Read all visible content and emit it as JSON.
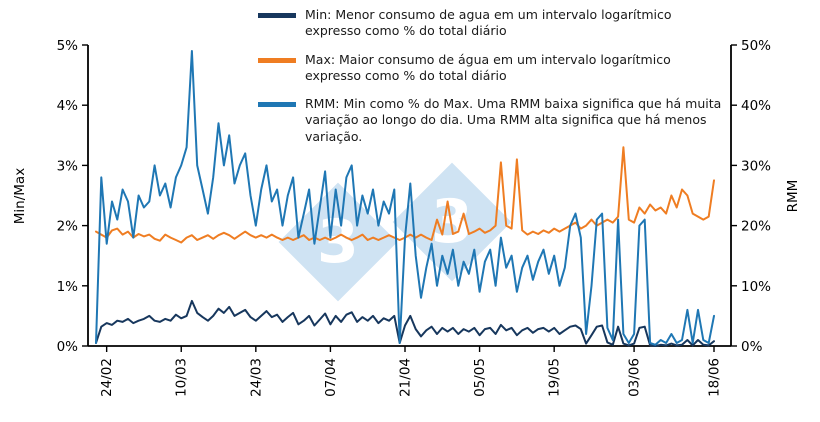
{
  "page": {
    "background": "#ffffff"
  },
  "watermark": {
    "digits": [
      "3",
      "3"
    ],
    "color": "#cfe3f3"
  },
  "legend": {
    "items": [
      {
        "name": "Min",
        "color": "#17375d",
        "text": "Min: Menor consumo de agua em um intervalo logarítmico expresso como % do total diário"
      },
      {
        "name": "Max",
        "color": "#ef7d22",
        "text": "Max: Maior consumo de água em um intervalo logarítmico expresso como % do total diário"
      },
      {
        "name": "RMM",
        "color": "#1f77b4",
        "text": "RMM: Min como % do Max. Uma RMM baixa significa que há muita variação ao longo do dia. Uma RMM alta significa que há menos variação."
      }
    ]
  },
  "chart_data": {
    "type": "line",
    "title": "",
    "left_axis": {
      "label": "Min/Max",
      "range": [
        0,
        5
      ],
      "ticks": [
        "0%",
        "1%",
        "2%",
        "3%",
        "4%",
        "5%"
      ]
    },
    "right_axis": {
      "label": "RMM",
      "range": [
        0,
        50
      ],
      "ticks": [
        "0%",
        "10%",
        "20%",
        "30%",
        "40%",
        "50%"
      ]
    },
    "n_points": 117,
    "x_ticks": [
      {
        "label": "24/02",
        "index": 2
      },
      {
        "label": "10/03",
        "index": 16
      },
      {
        "label": "24/03",
        "index": 30
      },
      {
        "label": "07/04",
        "index": 44
      },
      {
        "label": "21/04",
        "index": 58
      },
      {
        "label": "05/05",
        "index": 72
      },
      {
        "label": "19/05",
        "index": 86
      },
      {
        "label": "03/06",
        "index": 101
      },
      {
        "label": "18/06",
        "index": 116
      }
    ],
    "series": [
      {
        "name": "Min",
        "axis": "left",
        "color": "#17375d",
        "values": [
          0.05,
          0.32,
          0.38,
          0.35,
          0.42,
          0.4,
          0.45,
          0.38,
          0.42,
          0.45,
          0.5,
          0.42,
          0.4,
          0.45,
          0.42,
          0.52,
          0.46,
          0.5,
          0.75,
          0.55,
          0.48,
          0.42,
          0.5,
          0.62,
          0.55,
          0.65,
          0.5,
          0.55,
          0.6,
          0.48,
          0.42,
          0.5,
          0.58,
          0.48,
          0.52,
          0.4,
          0.48,
          0.55,
          0.36,
          0.42,
          0.5,
          0.34,
          0.44,
          0.54,
          0.36,
          0.5,
          0.4,
          0.52,
          0.56,
          0.4,
          0.48,
          0.42,
          0.5,
          0.38,
          0.46,
          0.42,
          0.5,
          0.05,
          0.34,
          0.5,
          0.28,
          0.16,
          0.26,
          0.32,
          0.2,
          0.3,
          0.24,
          0.3,
          0.2,
          0.28,
          0.24,
          0.3,
          0.18,
          0.28,
          0.3,
          0.2,
          0.35,
          0.26,
          0.3,
          0.18,
          0.26,
          0.3,
          0.22,
          0.28,
          0.3,
          0.24,
          0.3,
          0.2,
          0.26,
          0.32,
          0.34,
          0.28,
          0.04,
          0.18,
          0.32,
          0.34,
          0.06,
          0.02,
          0.32,
          0.04,
          0.01,
          0.04,
          0.3,
          0.32,
          0.01,
          0.0,
          0.02,
          0.01,
          0.04,
          0.01,
          0.02,
          0.1,
          0.01,
          0.1,
          0.02,
          0.01,
          0.08
        ]
      },
      {
        "name": "Max",
        "axis": "left",
        "color": "#ef7d22",
        "values": [
          1.9,
          1.85,
          1.8,
          1.92,
          1.95,
          1.85,
          1.9,
          1.8,
          1.86,
          1.82,
          1.85,
          1.78,
          1.75,
          1.85,
          1.8,
          1.76,
          1.72,
          1.8,
          1.84,
          1.76,
          1.8,
          1.84,
          1.78,
          1.84,
          1.88,
          1.84,
          1.78,
          1.84,
          1.9,
          1.84,
          1.8,
          1.84,
          1.8,
          1.85,
          1.8,
          1.76,
          1.8,
          1.76,
          1.8,
          1.84,
          1.76,
          1.8,
          1.76,
          1.8,
          1.76,
          1.8,
          1.85,
          1.8,
          1.76,
          1.8,
          1.85,
          1.76,
          1.8,
          1.76,
          1.8,
          1.84,
          1.8,
          1.76,
          1.8,
          1.85,
          1.8,
          1.85,
          1.8,
          1.76,
          2.1,
          1.85,
          2.4,
          1.86,
          1.9,
          2.2,
          1.86,
          1.9,
          1.95,
          1.88,
          1.92,
          2.0,
          3.05,
          2.0,
          1.95,
          3.1,
          1.92,
          1.85,
          1.9,
          1.86,
          1.92,
          1.88,
          1.95,
          1.9,
          1.95,
          2.0,
          2.05,
          1.95,
          2.0,
          2.1,
          2.0,
          2.05,
          2.1,
          2.05,
          2.15,
          3.3,
          2.1,
          2.05,
          2.3,
          2.2,
          2.35,
          2.25,
          2.3,
          2.2,
          2.5,
          2.3,
          2.6,
          2.5,
          2.2,
          2.15,
          2.1,
          2.15,
          2.75
        ]
      },
      {
        "name": "RMM",
        "axis": "right",
        "color": "#1f77b4",
        "values": [
          0.5,
          28,
          17,
          24,
          21,
          26,
          24,
          18,
          25,
          23,
          24,
          30,
          25,
          27,
          23,
          28,
          30,
          33,
          49,
          30,
          26,
          22,
          28,
          37,
          30,
          35,
          27,
          30,
          32,
          25,
          20,
          26,
          30,
          24,
          26,
          20,
          25,
          28,
          18,
          22,
          26,
          17,
          23,
          29,
          18,
          26,
          20,
          28,
          30,
          20,
          25,
          22,
          26,
          20,
          24,
          22,
          26,
          0.5,
          18,
          27,
          15,
          8,
          13,
          17,
          10,
          15,
          12,
          16,
          10,
          14,
          12,
          16,
          9,
          14,
          16,
          10,
          18,
          13,
          15,
          9,
          13,
          15,
          11,
          14,
          16,
          12,
          15,
          10,
          13,
          20,
          22,
          18,
          2,
          10,
          21,
          22,
          3,
          1,
          21,
          2,
          0.5,
          2,
          20,
          21,
          0.5,
          0.2,
          1,
          0.5,
          2,
          0.5,
          1,
          6,
          0.5,
          6,
          1,
          0.5,
          5
        ]
      }
    ]
  }
}
